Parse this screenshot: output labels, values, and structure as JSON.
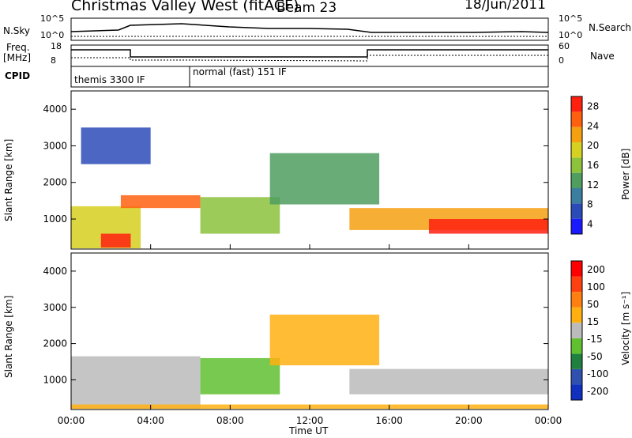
{
  "header": {
    "station": "Christmas Valley West (fitACF)",
    "beam": "Beam 23",
    "date": "18/Jun/2011"
  },
  "top_panels": {
    "nsky_label": "N.Sky",
    "nsky_ticks": [
      "10^5",
      "10^0"
    ],
    "nsearch_label": "N.Search",
    "nsearch_ticks": [
      "10^5",
      "10^0"
    ],
    "freq_label_1": "Freq.",
    "freq_label_2": "[MHz]",
    "freq_ticks": [
      "18",
      "8"
    ],
    "nave_label": "Nave",
    "nave_ticks": [
      "60",
      "0"
    ],
    "cpid_label": "CPID",
    "cpid_modes": [
      {
        "name": "themis 3300 IF",
        "start_hour": 0,
        "end_hour": 6
      },
      {
        "name": "normal (fast) 151 IF",
        "start_hour": 6,
        "end_hour": 24
      }
    ]
  },
  "chart_data": [
    {
      "type": "heatmap",
      "title": "Power",
      "xlabel": "",
      "ylabel": "Slant Range [km]",
      "xlim": [
        0,
        24
      ],
      "ylim": [
        180,
        4500
      ],
      "yticks": [
        1000,
        2000,
        3000,
        4000
      ],
      "colorbar": {
        "label": "Power [dB]",
        "range": [
          0,
          30
        ],
        "ticks": [
          "28",
          "24",
          "20",
          "16",
          "12",
          "8",
          "4"
        ],
        "colors": [
          "#1a1aff",
          "#2b4bb8",
          "#3c7ea0",
          "#4f9e60",
          "#8cc23c",
          "#d6d020",
          "#f5a010",
          "#ff6010",
          "#ff2010"
        ]
      },
      "regions": [
        {
          "x": [
            0,
            3.5
          ],
          "y": [
            200,
            1350
          ],
          "value": 18
        },
        {
          "x": [
            1.5,
            3.0
          ],
          "y": [
            220,
            600
          ],
          "value": 28
        },
        {
          "x": [
            2.5,
            6.5
          ],
          "y": [
            1300,
            1650
          ],
          "value": 24
        },
        {
          "x": [
            6.5,
            10.5
          ],
          "y": [
            600,
            1600
          ],
          "value": 16
        },
        {
          "x": [
            10.0,
            15.5
          ],
          "y": [
            1400,
            2800
          ],
          "value": 10
        },
        {
          "x": [
            14.0,
            24.0
          ],
          "y": [
            700,
            1300
          ],
          "value": 22
        },
        {
          "x": [
            18.0,
            24.0
          ],
          "y": [
            600,
            1000
          ],
          "value": 28
        },
        {
          "x": [
            0.5,
            4.0
          ],
          "y": [
            2500,
            3500
          ],
          "value": 6
        }
      ]
    },
    {
      "type": "heatmap",
      "title": "Velocity",
      "xlabel": "Time UT",
      "ylabel": "Slant Range [km]",
      "xlim": [
        0,
        24
      ],
      "ylim": [
        180,
        4500
      ],
      "yticks": [
        1000,
        2000,
        3000,
        4000
      ],
      "xticks": [
        "00:00",
        "04:00",
        "08:00",
        "12:00",
        "16:00",
        "20:00",
        "00:00"
      ],
      "colorbar": {
        "label": "Velocity [m s⁻¹]",
        "range": [
          -250,
          250
        ],
        "ticks": [
          "200",
          "100",
          "50",
          "15",
          "-15",
          "-50",
          "-100",
          "-200"
        ],
        "colors": [
          "#1030c0",
          "#3050b0",
          "#208040",
          "#60c030",
          "#bbbbbb",
          "#ffb010",
          "#ff8010",
          "#ff4010",
          "#ff0000"
        ]
      },
      "regions": [
        {
          "x": [
            0,
            6.5
          ],
          "y": [
            200,
            1650
          ],
          "value": 0
        },
        {
          "x": [
            6.5,
            10.5
          ],
          "y": [
            600,
            1600
          ],
          "value": -40
        },
        {
          "x": [
            10.0,
            15.5
          ],
          "y": [
            1400,
            2800
          ],
          "value": 30
        },
        {
          "x": [
            14.0,
            24.0
          ],
          "y": [
            600,
            1300
          ],
          "value": 0
        },
        {
          "x": [
            0,
            24
          ],
          "y": [
            200,
            320
          ],
          "value": 40
        }
      ]
    }
  ]
}
